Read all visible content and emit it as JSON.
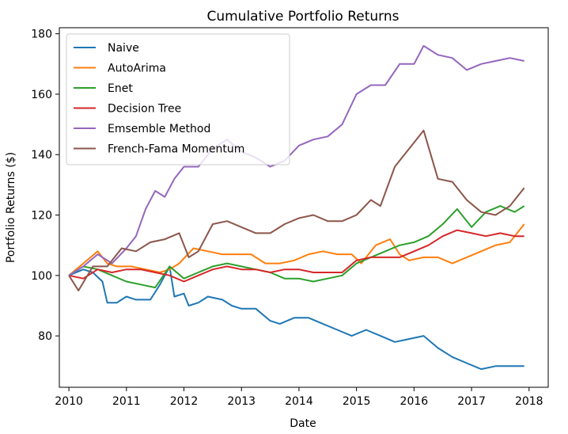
{
  "chart_data": {
    "type": "line",
    "title": "Cumulative Portfolio Returns",
    "xlabel": "Date",
    "ylabel": "Portfolio Returns ($)",
    "xlim": [
      "2009-11-01",
      "2018-05-01"
    ],
    "ylim": [
      63,
      182
    ],
    "x_ticks": [
      "2010",
      "2011",
      "2012",
      "2013",
      "2014",
      "2015",
      "2016",
      "2017",
      "2018"
    ],
    "y_ticks": [
      "80",
      "100",
      "120",
      "140",
      "160",
      "180"
    ],
    "grid": false,
    "legend": "top-left",
    "series": [
      {
        "name": "Naive",
        "color": "#1f77b4",
        "points": [
          [
            "2010-01",
            100
          ],
          [
            "2010-04",
            102
          ],
          [
            "2010-06",
            101
          ],
          [
            "2010-08",
            98
          ],
          [
            "2010-09",
            91
          ],
          [
            "2010-11",
            91
          ],
          [
            "2011-01",
            93
          ],
          [
            "2011-03",
            92
          ],
          [
            "2011-06",
            92
          ],
          [
            "2011-08",
            97
          ],
          [
            "2011-10",
            103
          ],
          [
            "2011-11",
            93
          ],
          [
            "2012-01",
            94
          ],
          [
            "2012-02",
            90
          ],
          [
            "2012-04",
            91
          ],
          [
            "2012-06",
            93
          ],
          [
            "2012-09",
            92
          ],
          [
            "2012-11",
            90
          ],
          [
            "2013-01",
            89
          ],
          [
            "2013-04",
            89
          ],
          [
            "2013-07",
            85
          ],
          [
            "2013-09",
            84
          ],
          [
            "2013-12",
            86
          ],
          [
            "2014-03",
            86
          ],
          [
            "2014-06",
            84
          ],
          [
            "2014-09",
            82
          ],
          [
            "2014-12",
            80
          ],
          [
            "2015-03",
            82
          ],
          [
            "2015-06",
            80
          ],
          [
            "2015-09",
            78
          ],
          [
            "2015-12",
            79
          ],
          [
            "2016-03",
            80
          ],
          [
            "2016-06",
            76
          ],
          [
            "2016-09",
            73
          ],
          [
            "2016-12",
            71
          ],
          [
            "2017-03",
            69
          ],
          [
            "2017-06",
            70
          ],
          [
            "2017-09",
            70
          ],
          [
            "2017-12",
            70
          ]
        ]
      },
      {
        "name": "AutoArima",
        "color": "#ff7f0e",
        "points": [
          [
            "2010-01",
            100
          ],
          [
            "2010-04",
            104
          ],
          [
            "2010-07",
            108
          ],
          [
            "2010-09",
            104
          ],
          [
            "2010-11",
            103
          ],
          [
            "2011-02",
            103
          ],
          [
            "2011-05",
            102
          ],
          [
            "2011-08",
            101
          ],
          [
            "2011-10",
            102
          ],
          [
            "2011-12",
            104
          ],
          [
            "2012-03",
            109
          ],
          [
            "2012-06",
            108
          ],
          [
            "2012-09",
            107
          ],
          [
            "2012-12",
            107
          ],
          [
            "2013-03",
            107
          ],
          [
            "2013-06",
            104
          ],
          [
            "2013-09",
            104
          ],
          [
            "2013-12",
            105
          ],
          [
            "2014-03",
            107
          ],
          [
            "2014-06",
            108
          ],
          [
            "2014-09",
            107
          ],
          [
            "2014-12",
            107
          ],
          [
            "2015-02",
            104
          ],
          [
            "2015-05",
            110
          ],
          [
            "2015-08",
            112
          ],
          [
            "2015-10",
            107
          ],
          [
            "2015-12",
            105
          ],
          [
            "2016-03",
            106
          ],
          [
            "2016-06",
            106
          ],
          [
            "2016-09",
            104
          ],
          [
            "2016-12",
            106
          ],
          [
            "2017-03",
            108
          ],
          [
            "2017-06",
            110
          ],
          [
            "2017-09",
            111
          ],
          [
            "2017-12",
            117
          ]
        ]
      },
      {
        "name": "Enet",
        "color": "#2ca02c",
        "points": [
          [
            "2010-01",
            100
          ],
          [
            "2010-04",
            103
          ],
          [
            "2010-07",
            102
          ],
          [
            "2010-10",
            100
          ],
          [
            "2011-01",
            98
          ],
          [
            "2011-04",
            97
          ],
          [
            "2011-07",
            96
          ],
          [
            "2011-10",
            103
          ],
          [
            "2012-01",
            99
          ],
          [
            "2012-04",
            101
          ],
          [
            "2012-07",
            103
          ],
          [
            "2012-10",
            104
          ],
          [
            "2013-01",
            103
          ],
          [
            "2013-04",
            102
          ],
          [
            "2013-07",
            101
          ],
          [
            "2013-10",
            99
          ],
          [
            "2014-01",
            99
          ],
          [
            "2014-04",
            98
          ],
          [
            "2014-07",
            99
          ],
          [
            "2014-10",
            100
          ],
          [
            "2015-01",
            104
          ],
          [
            "2015-04",
            106
          ],
          [
            "2015-07",
            108
          ],
          [
            "2015-10",
            110
          ],
          [
            "2016-01",
            111
          ],
          [
            "2016-04",
            113
          ],
          [
            "2016-07",
            117
          ],
          [
            "2016-10",
            122
          ],
          [
            "2017-01",
            116
          ],
          [
            "2017-04",
            121
          ],
          [
            "2017-07",
            123
          ],
          [
            "2017-10",
            121
          ],
          [
            "2017-12",
            123
          ]
        ]
      },
      {
        "name": "Decision Tree",
        "color": "#d62728",
        "points": [
          [
            "2010-01",
            100
          ],
          [
            "2010-04",
            99
          ],
          [
            "2010-07",
            102
          ],
          [
            "2010-10",
            101
          ],
          [
            "2011-01",
            102
          ],
          [
            "2011-04",
            102
          ],
          [
            "2011-07",
            101
          ],
          [
            "2011-10",
            100
          ],
          [
            "2012-01",
            98
          ],
          [
            "2012-04",
            100
          ],
          [
            "2012-07",
            102
          ],
          [
            "2012-10",
            103
          ],
          [
            "2013-01",
            102
          ],
          [
            "2013-04",
            102
          ],
          [
            "2013-07",
            101
          ],
          [
            "2013-10",
            102
          ],
          [
            "2014-01",
            102
          ],
          [
            "2014-04",
            101
          ],
          [
            "2014-07",
            101
          ],
          [
            "2014-10",
            101
          ],
          [
            "2015-01",
            105
          ],
          [
            "2015-04",
            106
          ],
          [
            "2015-07",
            106
          ],
          [
            "2015-10",
            106
          ],
          [
            "2016-01",
            108
          ],
          [
            "2016-04",
            110
          ],
          [
            "2016-07",
            113
          ],
          [
            "2016-10",
            115
          ],
          [
            "2017-01",
            114
          ],
          [
            "2017-04",
            113
          ],
          [
            "2017-07",
            114
          ],
          [
            "2017-10",
            113
          ],
          [
            "2017-12",
            113
          ]
        ]
      },
      {
        "name": "Emsemble Method",
        "color": "#9467bd",
        "points": [
          [
            "2010-01",
            100
          ],
          [
            "2010-04",
            103
          ],
          [
            "2010-07",
            107
          ],
          [
            "2010-10",
            104
          ],
          [
            "2011-01",
            109
          ],
          [
            "2011-03",
            113
          ],
          [
            "2011-05",
            122
          ],
          [
            "2011-07",
            128
          ],
          [
            "2011-09",
            126
          ],
          [
            "2011-11",
            132
          ],
          [
            "2012-01",
            136
          ],
          [
            "2012-04",
            136
          ],
          [
            "2012-07",
            142
          ],
          [
            "2012-10",
            145
          ],
          [
            "2013-01",
            141
          ],
          [
            "2013-04",
            139
          ],
          [
            "2013-07",
            136
          ],
          [
            "2013-10",
            138
          ],
          [
            "2014-01",
            143
          ],
          [
            "2014-04",
            145
          ],
          [
            "2014-07",
            146
          ],
          [
            "2014-10",
            150
          ],
          [
            "2015-01",
            160
          ],
          [
            "2015-04",
            163
          ],
          [
            "2015-07",
            163
          ],
          [
            "2015-10",
            170
          ],
          [
            "2016-01",
            170
          ],
          [
            "2016-03",
            176
          ],
          [
            "2016-06",
            173
          ],
          [
            "2016-09",
            172
          ],
          [
            "2016-12",
            168
          ],
          [
            "2017-03",
            170
          ],
          [
            "2017-06",
            171
          ],
          [
            "2017-09",
            172
          ],
          [
            "2017-12",
            171
          ]
        ]
      },
      {
        "name": "French-Fama Momentum",
        "color": "#8c564b",
        "points": [
          [
            "2010-01",
            100
          ],
          [
            "2010-03",
            95
          ],
          [
            "2010-06",
            103
          ],
          [
            "2010-09",
            103
          ],
          [
            "2010-12",
            109
          ],
          [
            "2011-03",
            108
          ],
          [
            "2011-06",
            111
          ],
          [
            "2011-09",
            112
          ],
          [
            "2011-12",
            114
          ],
          [
            "2012-02",
            106
          ],
          [
            "2012-04",
            108
          ],
          [
            "2012-07",
            117
          ],
          [
            "2012-10",
            118
          ],
          [
            "2013-01",
            116
          ],
          [
            "2013-04",
            114
          ],
          [
            "2013-07",
            114
          ],
          [
            "2013-10",
            117
          ],
          [
            "2014-01",
            119
          ],
          [
            "2014-04",
            120
          ],
          [
            "2014-07",
            118
          ],
          [
            "2014-10",
            118
          ],
          [
            "2015-01",
            120
          ],
          [
            "2015-04",
            125
          ],
          [
            "2015-06",
            123
          ],
          [
            "2015-09",
            136
          ],
          [
            "2015-11",
            140
          ],
          [
            "2016-01",
            144
          ],
          [
            "2016-03",
            148
          ],
          [
            "2016-06",
            132
          ],
          [
            "2016-09",
            131
          ],
          [
            "2016-12",
            125
          ],
          [
            "2017-03",
            121
          ],
          [
            "2017-06",
            120
          ],
          [
            "2017-09",
            123
          ],
          [
            "2017-12",
            129
          ]
        ]
      }
    ]
  }
}
